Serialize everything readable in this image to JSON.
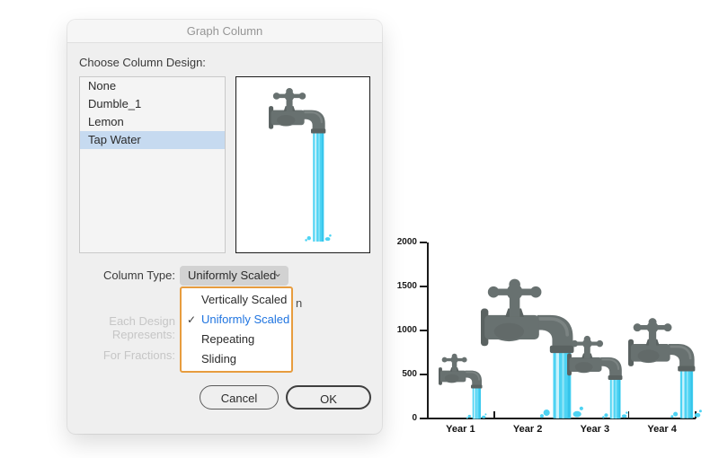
{
  "window": {
    "title": "Graph Column"
  },
  "dialog": {
    "choose_label": "Choose Column Design:",
    "designs": [
      "None",
      "Dumble_1",
      "Lemon",
      "Tap Water"
    ],
    "selected_design_index": 3,
    "column_type_label": "Column Type:",
    "column_type_value": "Uniformly Scaled",
    "dropdown_menu": {
      "items": [
        "Vertically Scaled",
        "Uniformly Scaled",
        "Repeating",
        "Sliding"
      ],
      "selected_index": 1,
      "checkmark": "✓"
    },
    "occluded_text_fragment": "n",
    "each_design_label": "Each Design Represents:",
    "for_fractions_label": "For Fractions:",
    "buttons": {
      "cancel": "Cancel",
      "ok": "OK"
    }
  },
  "icons": {
    "dropdown_chevron": "⌄"
  },
  "colors": {
    "accent_orange": "#E79C3E",
    "menu_selected_blue": "#1F74E0",
    "list_selection_blue": "#C6DAF0",
    "dialog_bg": "#EFEFEF",
    "tap_grey": "#687170",
    "tap_grey_dark": "#5A6261",
    "water_cyan": "#4DD3F3",
    "water_stripe_light": "#C9F2FC",
    "water_stripe_mid": "#8FE5F8"
  },
  "chart_data": {
    "type": "bar",
    "title": "",
    "categories": [
      "Year 1",
      "Year 2",
      "Year 3",
      "Year 4"
    ],
    "values": [
      750,
      1600,
      950,
      1150
    ],
    "ylim": [
      0,
      2000
    ],
    "yticks": [
      0,
      500,
      1000,
      1500,
      2000
    ],
    "xlabel": "",
    "ylabel": "",
    "grid": false,
    "legend": "none",
    "bar_design": "tap-water-faucet",
    "column_type": "Uniformly Scaled"
  }
}
